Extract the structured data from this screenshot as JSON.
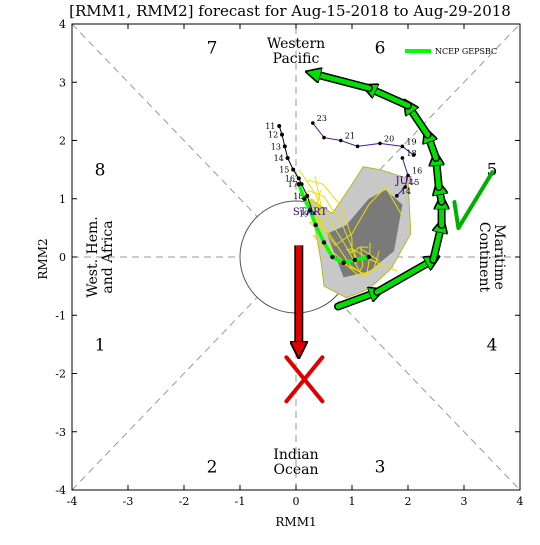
{
  "chart_data": {
    "type": "line",
    "title": "[RMM1, RMM2] forecast for Aug-15-2018 to Aug-29-2018",
    "xlabel": "RMM1",
    "ylabel": "RMM2",
    "xlim": [
      -4,
      4
    ],
    "ylim": [
      -4,
      4
    ],
    "xticks": [
      "-4",
      "-3",
      "-2",
      "-1",
      "0",
      "1",
      "2",
      "3",
      "4"
    ],
    "yticks": [
      "-4",
      "-3",
      "-2",
      "-1",
      "0",
      "1",
      "2",
      "3",
      "4"
    ],
    "grid": false,
    "legend_position": "top-right",
    "phases": [
      {
        "label": "1",
        "x": -3.5,
        "y": -1.5
      },
      {
        "label": "2",
        "x": -1.5,
        "y": -3.6
      },
      {
        "label": "3",
        "x": 1.5,
        "y": -3.6
      },
      {
        "label": "4",
        "x": 3.5,
        "y": -1.5
      },
      {
        "label": "5",
        "x": 3.5,
        "y": 1.5
      },
      {
        "label": "6",
        "x": 1.5,
        "y": 3.6
      },
      {
        "label": "7",
        "x": -1.5,
        "y": 3.6
      },
      {
        "label": "8",
        "x": -3.5,
        "y": 1.5
      }
    ],
    "regions": [
      {
        "name": "western-pacific",
        "lines": [
          "Western",
          "Pacific"
        ],
        "x": 0,
        "y": 3.5
      },
      {
        "name": "indian-ocean",
        "lines": [
          "Indian",
          "Ocean"
        ],
        "x": 0,
        "y": -3.55
      },
      {
        "name": "west-hem-africa",
        "lines": [
          "West. Hem.",
          "and Africa"
        ],
        "x": -3.55,
        "y": 0
      },
      {
        "name": "maritime-continent",
        "lines": [
          "Maritime",
          "Continent"
        ],
        "x": 3.55,
        "y": 0
      }
    ],
    "series": [
      {
        "name": "NCEP GEPSBC",
        "color": "#00ff00",
        "x": [
          0.05,
          0.15,
          0.25,
          0.35,
          0.5,
          0.65,
          0.85,
          1.05,
          1.3
        ],
        "y": [
          1.25,
          1.0,
          0.8,
          0.55,
          0.25,
          0.0,
          -0.1,
          -0.05,
          0.0
        ]
      }
    ],
    "observed": {
      "name": "observed",
      "color": "#000000",
      "x": [
        -0.3,
        -0.25,
        -0.2,
        -0.15,
        -0.05,
        0.05,
        0.1,
        0.2,
        0.3
      ],
      "y": [
        2.25,
        2.1,
        1.9,
        1.7,
        1.5,
        1.35,
        1.25,
        1.05,
        0.75
      ],
      "day_labels": [
        "11",
        "12",
        "13",
        "14",
        "15",
        "16",
        "17",
        "18",
        "19"
      ]
    },
    "ensemble_members": [
      {
        "x": [
          0.3,
          0.5,
          0.8,
          1.1,
          1.5,
          1.9,
          2.1
        ],
        "y": [
          2.3,
          2.05,
          2.0,
          1.9,
          1.95,
          1.9,
          1.75
        ],
        "day_labels": [
          "23",
          "",
          "21",
          "",
          "20",
          "19",
          ""
        ]
      },
      {
        "x": [
          1.9,
          2.0,
          1.95,
          1.8
        ],
        "y": [
          1.7,
          1.4,
          1.2,
          1.05
        ],
        "day_labels": [
          "18",
          "16",
          "15",
          "14"
        ]
      }
    ],
    "spread_outer": {
      "x": [
        0.25,
        0.65,
        1.0,
        1.2,
        1.5,
        2.0,
        2.05,
        1.7,
        1.3,
        0.9,
        0.5,
        0.45,
        0.25
      ],
      "y": [
        1.0,
        0.75,
        1.25,
        1.55,
        1.5,
        1.35,
        0.4,
        -0.2,
        -0.55,
        -0.7,
        -0.5,
        -0.1,
        1.0
      ]
    },
    "spread_inner": {
      "x": [
        0.55,
        0.9,
        1.3,
        1.6,
        1.9,
        1.75,
        1.3,
        0.85,
        0.55
      ],
      "y": [
        0.4,
        0.55,
        1.0,
        1.15,
        0.9,
        0.1,
        -0.25,
        -0.35,
        0.4
      ]
    },
    "annotations": [
      {
        "text": "START",
        "x": 0.25,
        "y": 0.72,
        "color": "#2a0080"
      },
      {
        "text": "JUL",
        "x": 1.95,
        "y": 1.25,
        "color": "#2a0080"
      }
    ],
    "drawn_overlays": {
      "green_arrow_path": {
        "x": [
          0.75,
          1.45,
          2.45,
          2.6,
          2.6,
          2.55,
          2.5,
          2.35,
          2.0,
          1.3,
          0.3
        ],
        "y": [
          -0.85,
          -0.6,
          -0.05,
          0.55,
          0.95,
          1.2,
          1.7,
          2.1,
          2.6,
          2.9,
          3.15
        ],
        "color": "#00e000"
      },
      "red_arrow": {
        "x1": 0.05,
        "y1": 0.2,
        "x2": 0.05,
        "y2": -1.6,
        "color": "#e00000"
      },
      "red_x": {
        "x": 0.15,
        "y": -2.1,
        "color": "#e00000"
      },
      "green_check": {
        "x": 2.9,
        "y": 0.6,
        "color": "#00b000"
      }
    }
  }
}
